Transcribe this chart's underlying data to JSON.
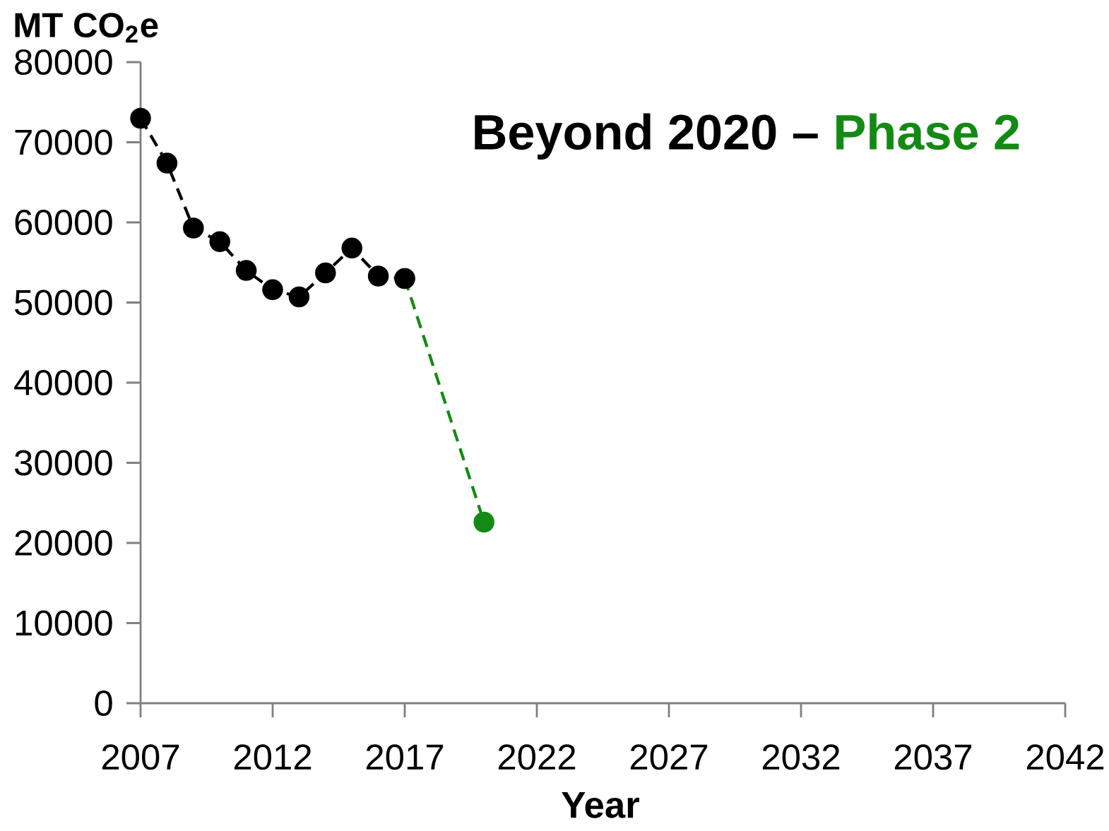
{
  "chart_data": {
    "type": "line",
    "title": "Beyond 2020 –",
    "subtitle": "Phase 2",
    "xlabel": "Year",
    "ylabel": "MT CO$_{2}$e",
    "xlim": [
      2007,
      2042
    ],
    "xticks": [
      2007,
      2012,
      2017,
      2022,
      2027,
      2032,
      2037,
      2042
    ],
    "ylim": [
      0,
      80000
    ],
    "yticks": [
      0,
      10000,
      20000,
      30000,
      40000,
      50000,
      60000,
      70000,
      80000
    ],
    "line_style": "dashed",
    "marker": "circle",
    "series": [
      {
        "color": "#138a13",
        "x": [
          2017,
          2020
        ],
        "values": [
          53000,
          22600
        ]
      },
      {
        "color": "#000000",
        "x": [
          2007,
          2008,
          2009,
          2010,
          2011,
          2012,
          2013,
          2014,
          2015,
          2016,
          2017
        ],
        "values": [
          73000,
          67400,
          59300,
          57600,
          54000,
          51600,
          50700,
          53700,
          56800,
          53300,
          53000
        ]
      }
    ]
  }
}
